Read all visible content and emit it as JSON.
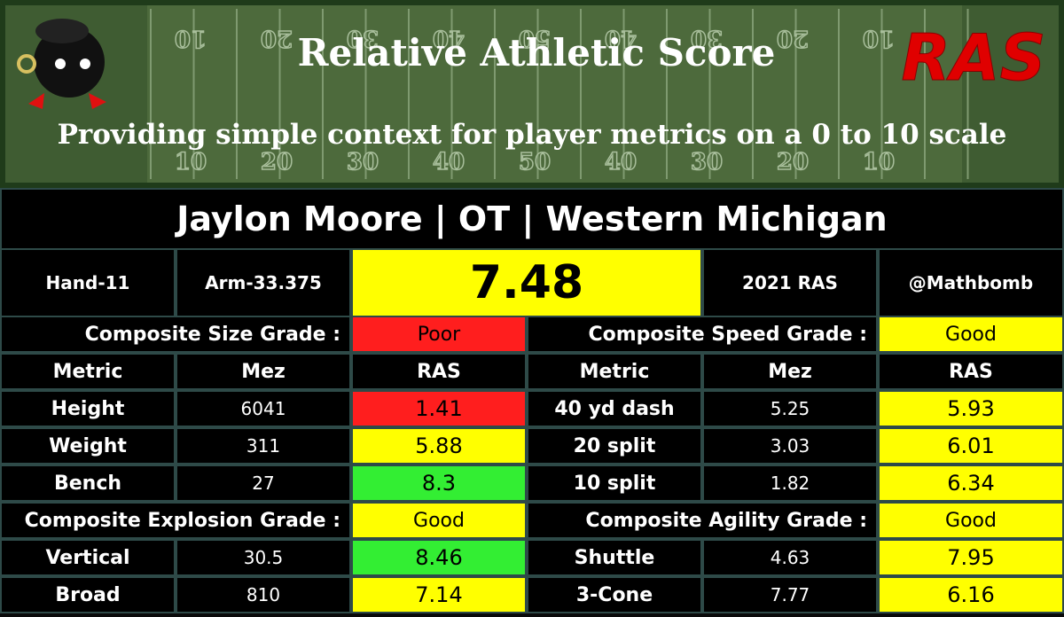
{
  "header": {
    "title": "Relative Athletic Score",
    "subtitle": "Providing simple context for player metrics on a 0 to 10 scale",
    "logo": "RAS",
    "yard_numbers": [
      "10",
      "20",
      "30",
      "40",
      "50",
      "40",
      "30",
      "20",
      "10"
    ]
  },
  "player": {
    "name_line": "Jaylon Moore | OT | Western Michigan",
    "hand": "Hand-11",
    "arm": "Arm-33.375",
    "score": "7.48",
    "year": "2021 RAS",
    "handle": "@Mathbomb",
    "score_color": "#ffff00"
  },
  "table": {
    "column_headers": [
      "Metric",
      "Mez",
      "RAS",
      "Metric",
      "Mez",
      "RAS"
    ],
    "blocks": [
      {
        "left": {
          "label": "Composite Size Grade :",
          "grade": "Poor",
          "color": "#ff1e1e",
          "rows": [
            {
              "metric": "Height",
              "mez": 6041,
              "ras": 1.41,
              "color": "#ff1e1e"
            },
            {
              "metric": "Weight",
              "mez": 311,
              "ras": 5.88,
              "color": "#ffff00"
            },
            {
              "metric": "Bench",
              "mez": 27,
              "ras": 8.3,
              "color": "#33ee33"
            }
          ]
        },
        "right": {
          "label": "Composite Speed Grade :",
          "grade": "Good",
          "color": "#ffff00",
          "rows": [
            {
              "metric": "40 yd dash",
              "mez": 5.25,
              "ras": 5.93,
              "color": "#ffff00"
            },
            {
              "metric": "20 split",
              "mez": 3.03,
              "ras": 6.01,
              "color": "#ffff00"
            },
            {
              "metric": "10 split",
              "mez": 1.82,
              "ras": 6.34,
              "color": "#ffff00"
            }
          ]
        }
      },
      {
        "left": {
          "label": "Composite Explosion Grade :",
          "grade": "Good",
          "color": "#ffff00",
          "rows": [
            {
              "metric": "Vertical",
              "mez": 30.5,
              "ras": 8.46,
              "color": "#33ee33"
            },
            {
              "metric": "Broad",
              "mez": 810,
              "ras": 7.14,
              "color": "#ffff00"
            }
          ]
        },
        "right": {
          "label": "Composite Agility Grade :",
          "grade": "Good",
          "color": "#ffff00",
          "rows": [
            {
              "metric": "Shuttle",
              "mez": 4.63,
              "ras": 7.95,
              "color": "#ffff00"
            },
            {
              "metric": "3-Cone",
              "mez": 7.77,
              "ras": 6.16,
              "color": "#ffff00"
            }
          ]
        }
      }
    ]
  }
}
